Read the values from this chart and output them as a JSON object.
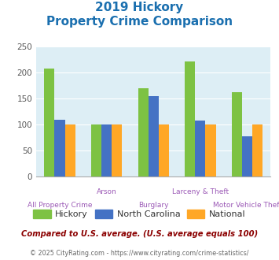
{
  "title_line1": "2019 Hickory",
  "title_line2": "Property Crime Comparison",
  "title_color": "#1a6faf",
  "categories": [
    "All Property Crime",
    "Arson",
    "Burglary",
    "Larceny & Theft",
    "Motor Vehicle Theft"
  ],
  "cat_labels_upper": [
    "",
    "Arson",
    "",
    "Larceny & Theft",
    ""
  ],
  "cat_labels_lower": [
    "All Property Crime",
    "",
    "Burglary",
    "",
    "Motor Vehicle Theft"
  ],
  "hickory": [
    208,
    100,
    170,
    222,
    163
  ],
  "north_carolina": [
    110,
    100,
    155,
    108,
    78
  ],
  "national": [
    100,
    100,
    100,
    100,
    100
  ],
  "hickory_color": "#7dc243",
  "nc_color": "#4472c4",
  "national_color": "#ffa726",
  "bg_color": "#ddeef5",
  "ylim": [
    0,
    250
  ],
  "yticks": [
    0,
    50,
    100,
    150,
    200,
    250
  ],
  "legend_labels": [
    "Hickory",
    "North Carolina",
    "National"
  ],
  "footnote1": "Compared to U.S. average. (U.S. average equals 100)",
  "footnote2": "© 2025 CityRating.com - https://www.cityrating.com/crime-statistics/",
  "footnote1_color": "#8b0000",
  "footnote2_color": "#666666"
}
